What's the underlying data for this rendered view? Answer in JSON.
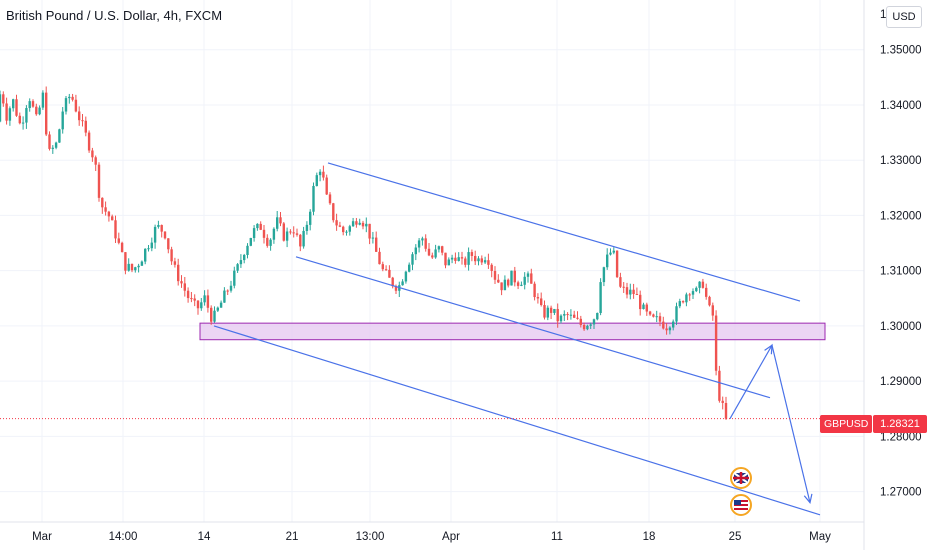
{
  "header": {
    "title": "British Pound / U.S. Dollar, 4h, FXCM",
    "currency": "USD",
    "top_tick_partial": "1"
  },
  "price_labels": {
    "symbol": "GBPUSD",
    "current_price": "1.28321"
  },
  "colors": {
    "up": "#26a69a",
    "down": "#ef5350",
    "trendline": "#4a72e8",
    "zone_fill": "#e6c7f0",
    "zone_stroke": "#9c27b0",
    "price_line": "#f23645",
    "grid": "#f0f3fa"
  },
  "chart_data": {
    "type": "candlestick",
    "instrument": "GBPUSD",
    "timeframe": "4h",
    "source": "FXCM",
    "y_ticks": [
      "1.35000",
      "1.34000",
      "1.33000",
      "1.32000",
      "1.31000",
      "1.30000",
      "1.29000",
      "1.28000",
      "1.27000"
    ],
    "x_ticks": [
      "Mar",
      "14:00",
      "14",
      "21",
      "13:00",
      "Apr",
      "11",
      "18",
      "25",
      "May"
    ],
    "ylim": [
      1.2645,
      1.359
    ],
    "current_price": 1.28321,
    "price_path": [
      {
        "t": 0,
        "p": 1.337
      },
      {
        "t": 4,
        "p": 1.343
      },
      {
        "t": 10,
        "p": 1.338
      },
      {
        "t": 16,
        "p": 1.341
      },
      {
        "t": 24,
        "p": 1.336
      },
      {
        "t": 32,
        "p": 1.342
      },
      {
        "t": 40,
        "p": 1.337
      },
      {
        "t": 46,
        "p": 1.342
      },
      {
        "t": 52,
        "p": 1.331
      },
      {
        "t": 60,
        "p": 1.333
      },
      {
        "t": 66,
        "p": 1.339
      },
      {
        "t": 74,
        "p": 1.342
      },
      {
        "t": 82,
        "p": 1.338
      },
      {
        "t": 90,
        "p": 1.334
      },
      {
        "t": 98,
        "p": 1.33
      },
      {
        "t": 104,
        "p": 1.322
      },
      {
        "t": 112,
        "p": 1.32
      },
      {
        "t": 120,
        "p": 1.316
      },
      {
        "t": 128,
        "p": 1.311
      },
      {
        "t": 136,
        "p": 1.31
      },
      {
        "t": 144,
        "p": 1.312
      },
      {
        "t": 152,
        "p": 1.315
      },
      {
        "t": 160,
        "p": 1.318
      },
      {
        "t": 168,
        "p": 1.317
      },
      {
        "t": 176,
        "p": 1.311
      },
      {
        "t": 184,
        "p": 1.308
      },
      {
        "t": 192,
        "p": 1.305
      },
      {
        "t": 200,
        "p": 1.303
      },
      {
        "t": 208,
        "p": 1.305
      },
      {
        "t": 216,
        "p": 1.301
      },
      {
        "t": 224,
        "p": 1.304
      },
      {
        "t": 232,
        "p": 1.307
      },
      {
        "t": 240,
        "p": 1.31
      },
      {
        "t": 248,
        "p": 1.314
      },
      {
        "t": 256,
        "p": 1.317
      },
      {
        "t": 264,
        "p": 1.318
      },
      {
        "t": 272,
        "p": 1.315
      },
      {
        "t": 280,
        "p": 1.319
      },
      {
        "t": 288,
        "p": 1.316
      },
      {
        "t": 296,
        "p": 1.318
      },
      {
        "t": 304,
        "p": 1.314
      },
      {
        "t": 312,
        "p": 1.32
      },
      {
        "t": 318,
        "p": 1.326
      },
      {
        "t": 324,
        "p": 1.329
      },
      {
        "t": 330,
        "p": 1.323
      },
      {
        "t": 338,
        "p": 1.319
      },
      {
        "t": 346,
        "p": 1.317
      },
      {
        "t": 354,
        "p": 1.318
      },
      {
        "t": 362,
        "p": 1.32
      },
      {
        "t": 370,
        "p": 1.318
      },
      {
        "t": 378,
        "p": 1.314
      },
      {
        "t": 386,
        "p": 1.31
      },
      {
        "t": 394,
        "p": 1.308
      },
      {
        "t": 402,
        "p": 1.307
      },
      {
        "t": 410,
        "p": 1.311
      },
      {
        "t": 418,
        "p": 1.314
      },
      {
        "t": 426,
        "p": 1.316
      },
      {
        "t": 434,
        "p": 1.312
      },
      {
        "t": 442,
        "p": 1.314
      },
      {
        "t": 450,
        "p": 1.311
      },
      {
        "t": 458,
        "p": 1.313
      },
      {
        "t": 466,
        "p": 1.311
      },
      {
        "t": 474,
        "p": 1.313
      },
      {
        "t": 482,
        "p": 1.312
      },
      {
        "t": 490,
        "p": 1.313
      },
      {
        "t": 498,
        "p": 1.309
      },
      {
        "t": 506,
        "p": 1.307
      },
      {
        "t": 514,
        "p": 1.309
      },
      {
        "t": 522,
        "p": 1.308
      },
      {
        "t": 530,
        "p": 1.309
      },
      {
        "t": 538,
        "p": 1.306
      },
      {
        "t": 546,
        "p": 1.302
      },
      {
        "t": 554,
        "p": 1.303
      },
      {
        "t": 562,
        "p": 1.301
      },
      {
        "t": 570,
        "p": 1.302
      },
      {
        "t": 578,
        "p": 1.301
      },
      {
        "t": 586,
        "p": 1.3
      },
      {
        "t": 594,
        "p": 1.301
      },
      {
        "t": 600,
        "p": 1.302
      },
      {
        "t": 604,
        "p": 1.309
      },
      {
        "t": 610,
        "p": 1.312
      },
      {
        "t": 616,
        "p": 1.314
      },
      {
        "t": 622,
        "p": 1.307
      },
      {
        "t": 630,
        "p": 1.306
      },
      {
        "t": 638,
        "p": 1.306
      },
      {
        "t": 646,
        "p": 1.303
      },
      {
        "t": 654,
        "p": 1.301
      },
      {
        "t": 662,
        "p": 1.301
      },
      {
        "t": 670,
        "p": 1.3
      },
      {
        "t": 678,
        "p": 1.302
      },
      {
        "t": 686,
        "p": 1.305
      },
      {
        "t": 694,
        "p": 1.307
      },
      {
        "t": 700,
        "p": 1.306
      },
      {
        "t": 706,
        "p": 1.308
      },
      {
        "t": 712,
        "p": 1.303
      },
      {
        "t": 716,
        "p": 1.302
      },
      {
        "t": 718,
        "p": 1.299
      },
      {
        "t": 720,
        "p": 1.288
      },
      {
        "t": 724,
        "p": 1.287
      },
      {
        "t": 728,
        "p": 1.2832
      }
    ],
    "annotations": {
      "support_zone": {
        "from": 1.2975,
        "to": 1.3005
      },
      "channel_upper": [
        {
          "t": 328,
          "p": 1.3295
        },
        {
          "t": 800,
          "p": 1.3045
        }
      ],
      "channel_middle": [
        {
          "t": 296,
          "p": 1.3125
        },
        {
          "t": 770,
          "p": 1.287
        }
      ],
      "channel_lower": [
        {
          "t": 214,
          "p": 1.3
        },
        {
          "t": 820,
          "p": 1.2658
        }
      ],
      "projection": [
        {
          "t": 730,
          "p": 1.28321
        },
        {
          "t": 772,
          "p": 1.2965
        },
        {
          "t": 810,
          "p": 1.268
        }
      ]
    }
  }
}
